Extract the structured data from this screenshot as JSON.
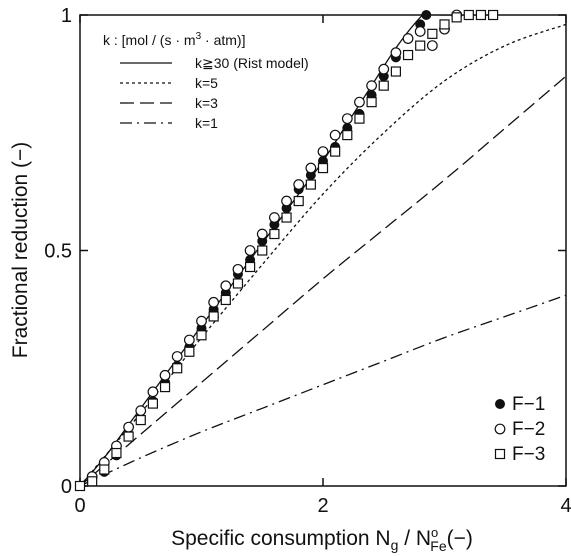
{
  "chart_data": {
    "type": "line",
    "xlabel": {
      "main": "Specific consumption  N",
      "sub1": "g",
      "mid": " / N",
      "sup": "o",
      "sub2": "Fe",
      "tail": "(−)"
    },
    "ylabel": "Fractional reduction (−)",
    "xlim": [
      0,
      4
    ],
    "ylim": [
      0,
      1
    ],
    "x_ticks": [
      0,
      2,
      4
    ],
    "x_tick_labels": [
      "0",
      "2",
      "4"
    ],
    "y_ticks": [
      0,
      0.5,
      1
    ],
    "y_tick_labels": [
      "0",
      "0.5",
      "1"
    ],
    "legend_title": {
      "prefix": "k : [mol / (s · m",
      "sup": "3",
      "suffix": " · atm)]"
    },
    "line_series": [
      {
        "name": "k≧30 (Rist model)",
        "style": "solid",
        "x": [
          0,
          0.2,
          0.4,
          0.6,
          0.8,
          1.0,
          1.2,
          1.4,
          1.6,
          1.8,
          2.0,
          2.2,
          2.4,
          2.6,
          2.8,
          2.85,
          3.0,
          3.2,
          3.4
        ],
        "y": [
          0,
          0.06,
          0.13,
          0.2,
          0.27,
          0.34,
          0.41,
          0.48,
          0.55,
          0.62,
          0.69,
          0.77,
          0.85,
          0.93,
          0.995,
          1.0,
          1.0,
          1.0,
          1.0
        ]
      },
      {
        "name": "k=5",
        "style": "dotted",
        "x": [
          0,
          0.5,
          1.0,
          1.5,
          2.0,
          2.5,
          3.0,
          3.5,
          4.0
        ],
        "y": [
          0,
          0.155,
          0.315,
          0.47,
          0.62,
          0.75,
          0.86,
          0.935,
          0.98
        ]
      },
      {
        "name": "k=3",
        "style": "dashed",
        "x": [
          0,
          0.5,
          1.0,
          1.5,
          2.0,
          2.5,
          3.0,
          3.5,
          4.0
        ],
        "y": [
          0,
          0.11,
          0.22,
          0.33,
          0.44,
          0.545,
          0.65,
          0.76,
          0.87
        ]
      },
      {
        "name": "k=1",
        "style": "dashdot",
        "x": [
          0,
          0.5,
          1.0,
          1.5,
          2.0,
          2.5,
          3.0,
          3.5,
          4.0
        ],
        "y": [
          0,
          0.06,
          0.115,
          0.165,
          0.215,
          0.265,
          0.315,
          0.36,
          0.405
        ]
      }
    ],
    "scatter_series": [
      {
        "name": "F−1",
        "marker": "filled-circle",
        "x": [
          0,
          0.2,
          0.3,
          0.4,
          0.5,
          0.6,
          0.7,
          0.8,
          0.9,
          1.0,
          1.1,
          1.2,
          1.3,
          1.4,
          1.5,
          1.6,
          1.7,
          1.8,
          1.9,
          2.0,
          2.1,
          2.2,
          2.3,
          2.4,
          2.5,
          2.6,
          2.7,
          2.8,
          2.85
        ],
        "y": [
          0,
          0.03,
          0.065,
          0.11,
          0.14,
          0.18,
          0.22,
          0.255,
          0.295,
          0.335,
          0.375,
          0.41,
          0.45,
          0.48,
          0.52,
          0.555,
          0.59,
          0.63,
          0.66,
          0.69,
          0.72,
          0.76,
          0.79,
          0.83,
          0.87,
          0.91,
          0.95,
          0.98,
          1.0
        ]
      },
      {
        "name": "F−2",
        "marker": "open-circle",
        "x": [
          0.1,
          0.2,
          0.3,
          0.4,
          0.5,
          0.6,
          0.7,
          0.8,
          0.9,
          1.0,
          1.1,
          1.2,
          1.3,
          1.4,
          1.5,
          1.6,
          1.7,
          1.8,
          1.9,
          2.0,
          2.1,
          2.2,
          2.3,
          2.4,
          2.5,
          2.6,
          2.7,
          2.8,
          2.9,
          3.0,
          3.1
        ],
        "y": [
          0.02,
          0.05,
          0.085,
          0.125,
          0.16,
          0.2,
          0.235,
          0.275,
          0.31,
          0.35,
          0.39,
          0.425,
          0.46,
          0.5,
          0.535,
          0.57,
          0.605,
          0.64,
          0.675,
          0.71,
          0.745,
          0.78,
          0.815,
          0.85,
          0.885,
          0.92,
          0.95,
          0.965,
          0.935,
          0.97,
          1.0
        ]
      },
      {
        "name": "F−3",
        "marker": "open-square",
        "x": [
          0,
          0.1,
          0.2,
          0.3,
          0.4,
          0.5,
          0.6,
          0.7,
          0.8,
          0.9,
          1.0,
          1.1,
          1.2,
          1.3,
          1.4,
          1.5,
          1.6,
          1.7,
          1.8,
          1.9,
          2.0,
          2.1,
          2.2,
          2.3,
          2.4,
          2.5,
          2.6,
          2.7,
          2.8,
          2.9,
          3.0,
          3.1,
          3.2,
          3.3,
          3.4
        ],
        "y": [
          0,
          0.01,
          0.035,
          0.07,
          0.105,
          0.14,
          0.175,
          0.21,
          0.25,
          0.285,
          0.32,
          0.36,
          0.395,
          0.43,
          0.465,
          0.5,
          0.535,
          0.57,
          0.605,
          0.64,
          0.675,
          0.71,
          0.745,
          0.78,
          0.815,
          0.85,
          0.88,
          0.915,
          0.935,
          0.96,
          0.98,
          0.995,
          1.0,
          1.0,
          1.0
        ]
      }
    ],
    "grid": false,
    "legend_lines_position": "top-left",
    "legend_markers_position": "bottom-right"
  }
}
